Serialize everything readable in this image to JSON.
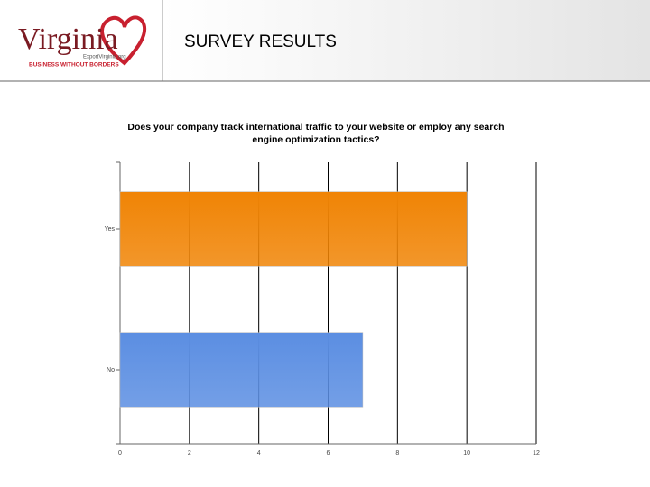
{
  "header": {
    "logo": "Virginia",
    "site": "ExportVirginia.org",
    "tagline": "BUSINESS WITHOUT BORDERS",
    "title": "SURVEY RESULTS"
  },
  "chart_data": {
    "type": "hbar",
    "title": "Does your company track international traffic to your website or employ any search engine optimization tactics?",
    "categories": [
      "Yes",
      "No"
    ],
    "values": [
      10,
      7
    ],
    "colors": [
      "#f08405",
      "#5b8ee2"
    ],
    "xlim": [
      0,
      12
    ],
    "xticks": [
      0,
      2,
      4,
      6,
      8,
      10,
      12
    ],
    "grid": true
  }
}
